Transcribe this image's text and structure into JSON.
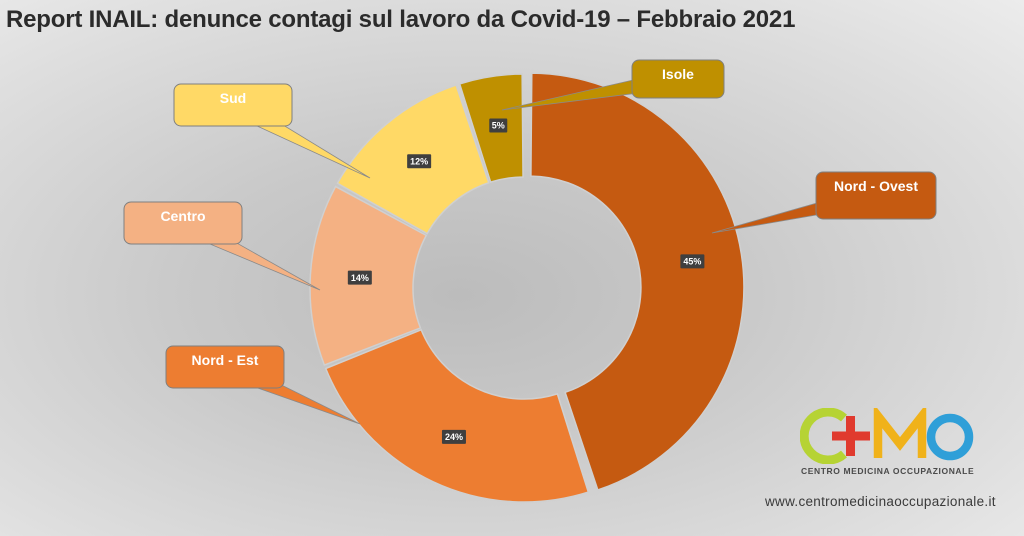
{
  "title": "Report INAIL: denunce contagi sul lavoro da Covid-19 – Febbraio 2021",
  "chart_data": {
    "type": "pie",
    "donut": true,
    "slices": [
      {
        "label": "Nord - Ovest",
        "value": 45,
        "display": "45%",
        "color": "#c55a11"
      },
      {
        "label": "Nord - Est",
        "value": 24,
        "display": "24%",
        "color": "#ed7d31"
      },
      {
        "label": "Centro",
        "value": 14,
        "display": "14%",
        "color": "#f4b183"
      },
      {
        "label": "Sud",
        "value": 12,
        "display": "12%",
        "color": "#ffd966"
      },
      {
        "label": "Isole",
        "value": 5,
        "display": "5%",
        "color": "#bf9000"
      }
    ],
    "label_text_colors": {
      "Nord - Ovest": "#ffffff",
      "Nord - Est": "#ffffff",
      "Centro": "#ffffff",
      "Sud": "#ffffff",
      "Isole": "#ffffff"
    }
  },
  "logo": {
    "letters": "CMO",
    "subtitle": "CENTRO MEDICINA OCCUPAZIONALE",
    "colors": {
      "c": "#b6d334",
      "cross": "#e03a2e",
      "m": "#f0b21a",
      "o": "#2f9fd8"
    }
  },
  "website": "www.centromedicinaoccupazionale.it"
}
